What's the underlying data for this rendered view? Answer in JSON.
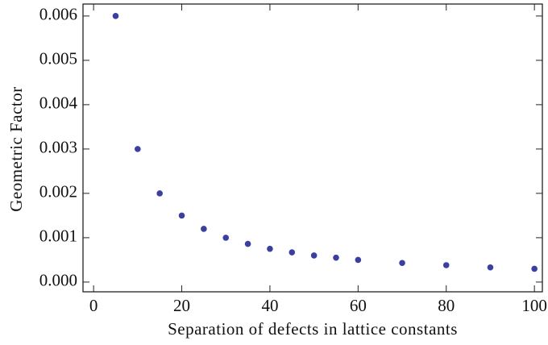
{
  "chart_data": {
    "type": "scatter",
    "x_label": "Separation of defects in lattice constants",
    "y_label": "Geometric Factor",
    "x": [
      5,
      10,
      15,
      20,
      25,
      30,
      35,
      40,
      45,
      50,
      55,
      60,
      70,
      80,
      90,
      100
    ],
    "series": [
      {
        "name": null,
        "color": "#3b3fa0",
        "values": [
          0.006,
          0.003,
          0.002,
          0.0015,
          0.0012,
          0.001,
          0.00086,
          0.00075,
          0.00067,
          0.0006,
          0.00055,
          0.0005,
          0.00043,
          0.00038,
          0.00033,
          0.0003
        ]
      }
    ],
    "xlim": [
      -2.4,
      101.8
    ],
    "ylim": [
      -0.00022,
      0.00627
    ],
    "xticks": [
      0,
      20,
      40,
      60,
      80,
      100
    ],
    "yticks": [
      {
        "value": 0,
        "label": "0.000"
      },
      {
        "value": 0.001,
        "label": "0.001"
      },
      {
        "value": 0.002,
        "label": "0.002"
      },
      {
        "value": 0.003,
        "label": "0.003"
      },
      {
        "value": 0.004,
        "label": "0.004"
      },
      {
        "value": 0.005,
        "label": "0.005"
      },
      {
        "value": 0.006,
        "label": "0.006"
      }
    ],
    "grid": false
  }
}
